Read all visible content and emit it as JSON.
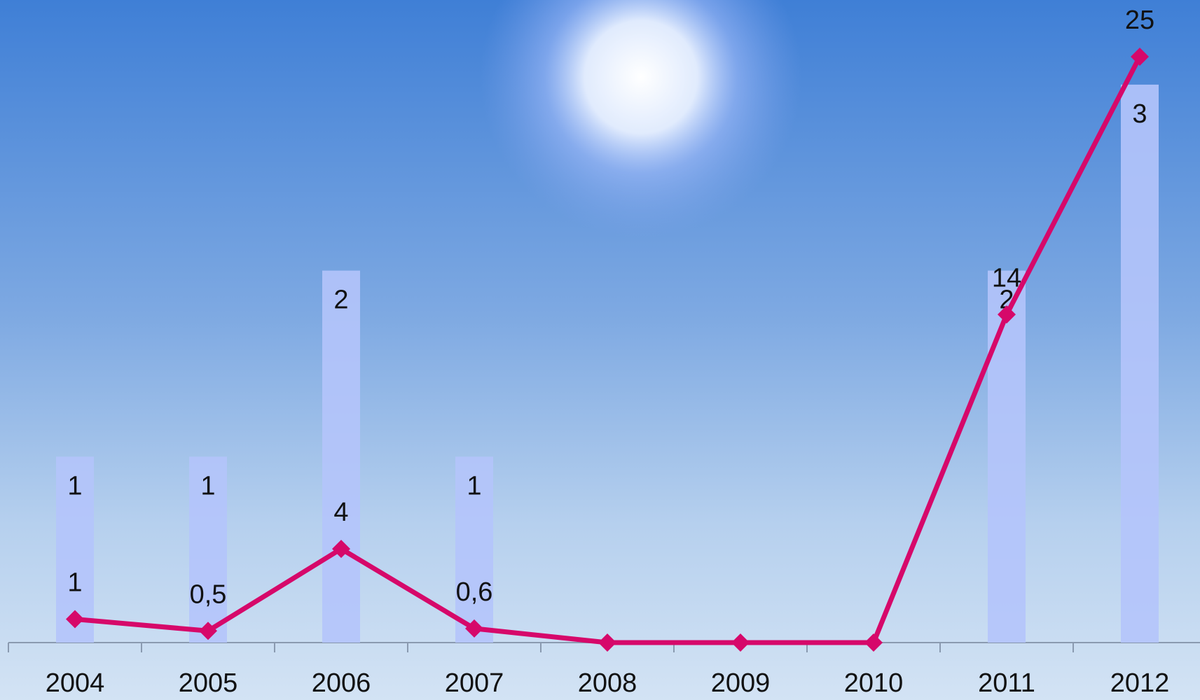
{
  "chart_data": {
    "type": "bar-line",
    "categories": [
      "2004",
      "2005",
      "2006",
      "2007",
      "2008",
      "2009",
      "2010",
      "2011",
      "2012"
    ],
    "series": [
      {
        "type": "bar",
        "color": "#b4c4fb",
        "values": [
          1,
          1,
          2,
          1,
          null,
          null,
          null,
          2,
          3
        ]
      },
      {
        "type": "line",
        "axis": "y2",
        "color": "#d6086a",
        "values": [
          1,
          0.5,
          4,
          0.6,
          0,
          0,
          0,
          14,
          25
        ],
        "value_labels": [
          "1",
          "0,5",
          "4",
          "0,6",
          null,
          null,
          null,
          "14",
          "25"
        ]
      }
    ],
    "ylim": [
      0,
      3.455
    ],
    "y2lim": [
      0,
      27.42
    ]
  }
}
